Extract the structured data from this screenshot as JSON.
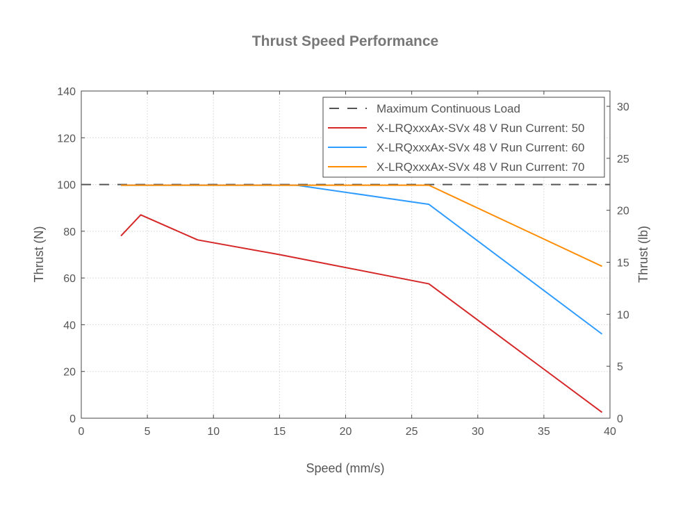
{
  "chart_data": {
    "type": "line",
    "title": "Thrust Speed Performance",
    "xlabel": "Speed (mm/s)",
    "ylabel": "Thrust (N)",
    "ylabel_right": "Thrust (lb)",
    "xlim": [
      0,
      40
    ],
    "ylim": [
      0,
      140
    ],
    "ylim_right_lb": [
      0,
      31.47
    ],
    "xticks": [
      0,
      5,
      10,
      15,
      20,
      25,
      30,
      35,
      40
    ],
    "yticks": [
      0,
      20,
      40,
      60,
      80,
      100,
      120,
      140
    ],
    "yticks_right": [
      0,
      5,
      10,
      15,
      20,
      25,
      30
    ],
    "grid": true,
    "legend_position": "top-right",
    "series": [
      {
        "name": "Maximum Continuous Load",
        "color": "#555555",
        "dashed": true,
        "x": [
          0,
          40
        ],
        "y": [
          100,
          100
        ]
      },
      {
        "name": "X-LRQxxxAx-SVx 48 V Run Current: 50",
        "color": "#d62728",
        "x": [
          3,
          4.5,
          8.8,
          15,
          26.3,
          39.4
        ],
        "y": [
          78,
          87,
          76.3,
          70,
          57.5,
          2.5
        ]
      },
      {
        "name": "X-LRQxxxAx-SVx 48 V Run Current: 60",
        "color": "#2e9bff",
        "x": [
          3,
          16.3,
          26.3,
          39.4
        ],
        "y": [
          99.7,
          99.7,
          91.5,
          36
        ]
      },
      {
        "name": "X-LRQxxxAx-SVx 48 V Run Current: 70",
        "color": "#ff8c00",
        "x": [
          3,
          26.3,
          39.4
        ],
        "y": [
          99.7,
          99.7,
          65
        ]
      }
    ]
  }
}
